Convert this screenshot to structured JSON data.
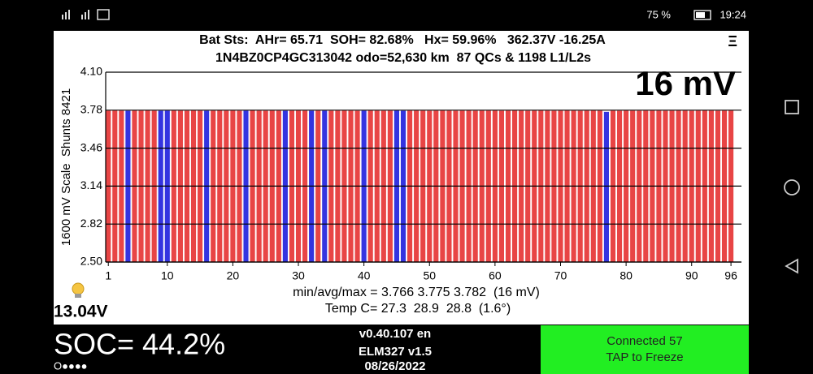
{
  "status_bar": {
    "battery": "75 %",
    "time": "19:24"
  },
  "header": {
    "line1": "Bat Sts:  AHr= 65.71  SOH= 82.68%   Hx= 59.96%   362.37V -16.25A",
    "line2": "1N4BZ0CP4GC313042 odo=52,630 km  87 QCs & 1198 L1/L2s",
    "menu": "Ξ"
  },
  "chart_data": {
    "type": "bar",
    "big_label": "16 mV",
    "ylabel": "1600 mV Scale  Shunts 8421",
    "x": [
      1,
      2,
      3,
      4,
      5,
      6,
      7,
      8,
      9,
      10,
      11,
      12,
      13,
      14,
      15,
      16,
      17,
      18,
      19,
      20,
      21,
      22,
      23,
      24,
      25,
      26,
      27,
      28,
      29,
      30,
      31,
      32,
      33,
      34,
      35,
      36,
      37,
      38,
      39,
      40,
      41,
      42,
      43,
      44,
      45,
      46,
      47,
      48,
      49,
      50,
      51,
      52,
      53,
      54,
      55,
      56,
      57,
      58,
      59,
      60,
      61,
      62,
      63,
      64,
      65,
      66,
      67,
      68,
      69,
      70,
      71,
      72,
      73,
      74,
      75,
      76,
      77,
      78,
      79,
      80,
      81,
      82,
      83,
      84,
      85,
      86,
      87,
      88,
      89,
      90,
      91,
      92,
      93,
      94,
      95,
      96
    ],
    "values": [
      3.776,
      3.777,
      3.776,
      3.775,
      3.777,
      3.776,
      3.778,
      3.776,
      3.775,
      3.776,
      3.777,
      3.776,
      3.775,
      3.777,
      3.776,
      3.775,
      3.776,
      3.778,
      3.776,
      3.777,
      3.775,
      3.776,
      3.782,
      3.776,
      3.775,
      3.777,
      3.776,
      3.775,
      3.776,
      3.777,
      3.776,
      3.775,
      3.777,
      3.776,
      3.775,
      3.776,
      3.777,
      3.776,
      3.775,
      3.776,
      3.777,
      3.776,
      3.775,
      3.776,
      3.777,
      3.775,
      3.776,
      3.777,
      3.776,
      3.775,
      3.776,
      3.777,
      3.776,
      3.775,
      3.776,
      3.777,
      3.775,
      3.776,
      3.776,
      3.777,
      3.775,
      3.776,
      3.777,
      3.776,
      3.775,
      3.776,
      3.777,
      3.776,
      3.775,
      3.776,
      3.777,
      3.776,
      3.775,
      3.776,
      3.777,
      3.776,
      3.766,
      3.776,
      3.775,
      3.777,
      3.776,
      3.775,
      3.776,
      3.777,
      3.776,
      3.775,
      3.776,
      3.777,
      3.776,
      3.775,
      3.776,
      3.777,
      3.776,
      3.775,
      3.776,
      3.777
    ],
    "color": "#e84545",
    "shunt_cells": [
      4,
      9,
      10,
      16,
      22,
      28,
      32,
      34,
      40,
      45,
      46,
      77
    ],
    "shunt_color": "#3434e0",
    "xlim": [
      0.6,
      97.6
    ],
    "xticks": [
      1,
      10,
      20,
      30,
      40,
      50,
      60,
      70,
      80,
      90,
      96
    ],
    "ylim": [
      2.5,
      4.1
    ],
    "yticks": [
      {
        "value": 2.5,
        "label": "2.50"
      },
      2.82,
      3.14,
      3.46,
      3.78,
      {
        "value": 4.1,
        "label": "4.10"
      }
    ],
    "grid": true,
    "stats": "min/avg/max = 3.766 3.775 3.782  (16 mV)",
    "temp": "Temp C= 27.3  28.9  28.8  (1.6°)"
  },
  "voltage": "13.04V",
  "footer": {
    "soc": "SOC= 44.2%",
    "dots": "O●●●●",
    "version": "v0.40.107 en",
    "adapter": "ELM327 v1.5",
    "date": "08/26/2022",
    "connected": "Connected 57",
    "tap": "TAP to Freeze"
  }
}
